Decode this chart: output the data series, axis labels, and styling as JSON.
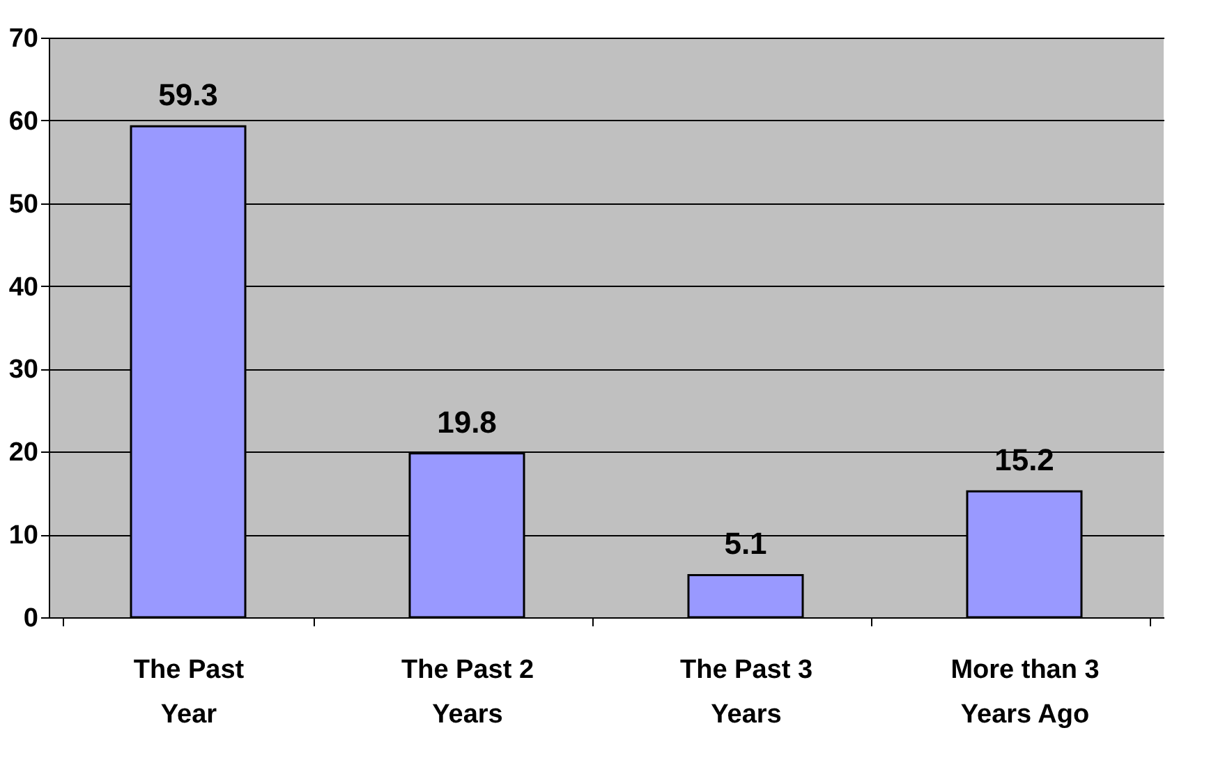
{
  "chart_data": {
    "type": "bar",
    "categories": [
      "The Past Year",
      "The Past 2 Years",
      "The Past 3 Years",
      "More than 3 Years Ago"
    ],
    "values": [
      59.3,
      19.8,
      5.1,
      15.2
    ],
    "color": "#9999ff",
    "ylim": [
      0,
      70
    ],
    "yticks": [
      0,
      10,
      20,
      30,
      40,
      50,
      60,
      70
    ],
    "grid": "y",
    "data_labels": true
  }
}
